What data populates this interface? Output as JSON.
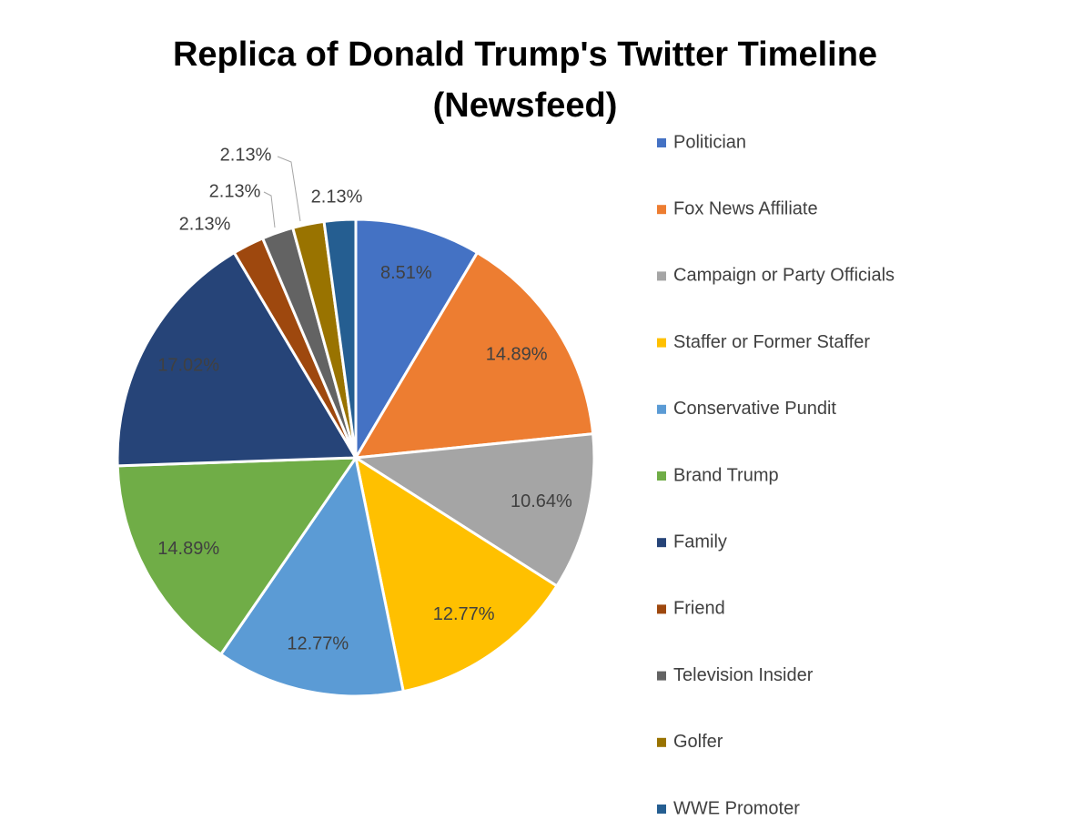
{
  "chart_data": {
    "type": "pie",
    "title": "Replica of Donald Trump's Twitter Timeline (Newsfeed)",
    "categories": [
      "Politician",
      "Fox News Affiliate",
      "Campaign or Party Officials",
      "Staffer or Former Staffer",
      "Conservative Pundit",
      "Brand Trump",
      "Family",
      "Friend",
      "Television Insider",
      "Golfer",
      "WWE Promoter"
    ],
    "values": [
      8.51,
      14.89,
      10.64,
      12.77,
      12.77,
      14.89,
      17.02,
      2.13,
      2.13,
      2.13,
      2.13
    ],
    "value_labels": [
      "8.51%",
      "14.89%",
      "10.64%",
      "12.77%",
      "12.77%",
      "14.89%",
      "17.02%",
      "2.13%",
      "2.13%",
      "2.13%",
      "2.13%"
    ],
    "colors": [
      "#4472c4",
      "#ed7d31",
      "#a5a5a5",
      "#ffc000",
      "#5b9bd5",
      "#70ad47",
      "#264478",
      "#9e480e",
      "#636363",
      "#997300",
      "#255e91"
    ],
    "legend": "right"
  }
}
